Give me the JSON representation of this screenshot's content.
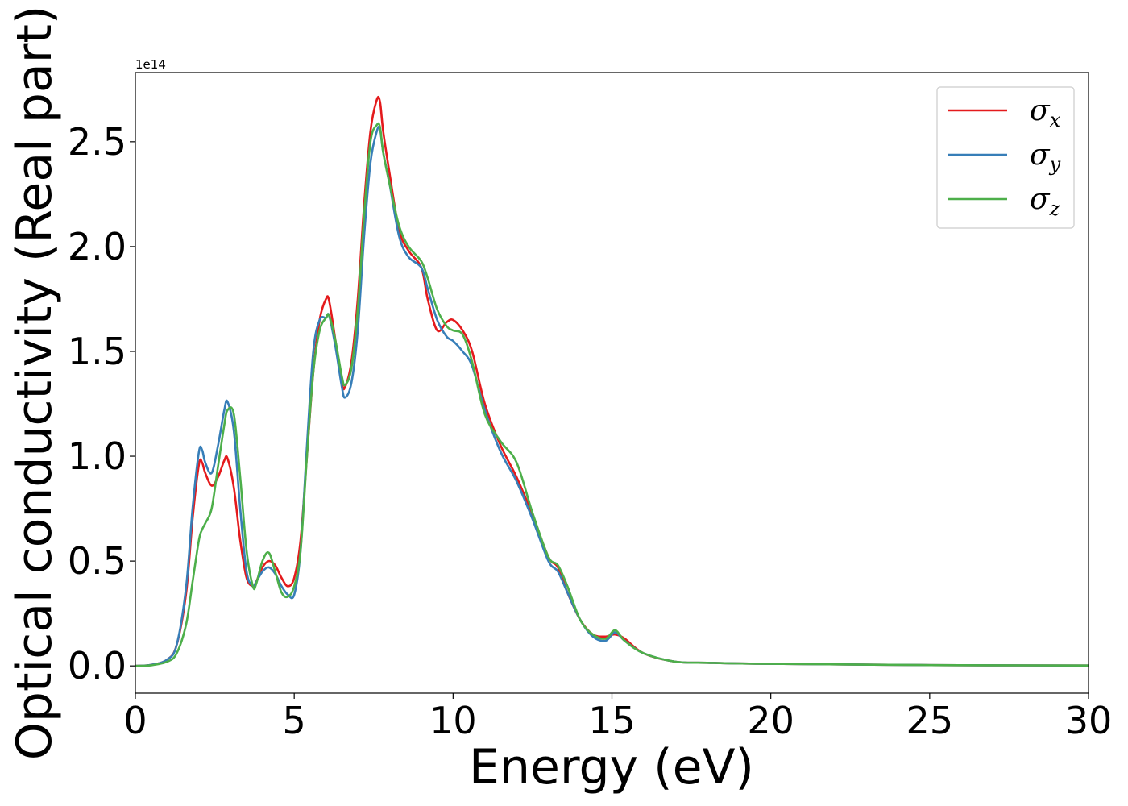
{
  "chart_data": {
    "type": "line",
    "title": "",
    "xlabel": "Energy (eV)",
    "ylabel": "Optical conductivity (Real part)",
    "y_offset_text": "1e14",
    "xlim": [
      0,
      30
    ],
    "ylim": [
      -0.13,
      2.83
    ],
    "y_scale_multiplier": 100000000000000.0,
    "xticks": [
      0,
      5,
      10,
      15,
      20,
      25,
      30
    ],
    "xtick_labels": [
      "0",
      "5",
      "10",
      "15",
      "20",
      "25",
      "30"
    ],
    "yticks": [
      0.0,
      0.5,
      1.0,
      1.5,
      2.0,
      2.5
    ],
    "ytick_labels": [
      "0.0",
      "0.5",
      "1.0",
      "1.5",
      "2.0",
      "2.5"
    ],
    "grid": false,
    "legend_position": "top-right",
    "series": [
      {
        "name": "σx",
        "legend_symbol": "σ",
        "legend_subscript": "x",
        "color": "#e41a1c",
        "x": [
          0,
          0.5,
          1.0,
          1.3,
          1.6,
          1.8,
          2.0,
          2.1,
          2.2,
          2.4,
          2.6,
          2.8,
          2.9,
          3.1,
          3.3,
          3.5,
          3.7,
          3.8,
          4.0,
          4.2,
          4.4,
          4.6,
          4.8,
          5.0,
          5.2,
          5.4,
          5.6,
          5.8,
          6.0,
          6.1,
          6.3,
          6.5,
          6.6,
          6.8,
          7.0,
          7.2,
          7.4,
          7.6,
          7.7,
          7.8,
          8.0,
          8.3,
          8.6,
          9.0,
          9.2,
          9.5,
          9.8,
          10.0,
          10.3,
          10.6,
          11.0,
          11.5,
          12.0,
          12.5,
          13.0,
          13.3,
          13.6,
          14.0,
          14.4,
          14.8,
          15.1,
          15.4,
          16.0,
          17.0,
          18.0,
          20.0,
          25.0,
          30.0
        ],
        "y": [
          0.0,
          0.005,
          0.03,
          0.1,
          0.35,
          0.7,
          0.96,
          0.97,
          0.92,
          0.86,
          0.9,
          0.98,
          0.99,
          0.85,
          0.6,
          0.42,
          0.38,
          0.4,
          0.47,
          0.5,
          0.48,
          0.42,
          0.38,
          0.42,
          0.6,
          1.0,
          1.4,
          1.65,
          1.75,
          1.74,
          1.55,
          1.35,
          1.33,
          1.45,
          1.75,
          2.2,
          2.55,
          2.7,
          2.69,
          2.55,
          2.35,
          2.08,
          1.98,
          1.9,
          1.75,
          1.6,
          1.64,
          1.65,
          1.6,
          1.5,
          1.25,
          1.05,
          0.9,
          0.72,
          0.52,
          0.47,
          0.35,
          0.22,
          0.15,
          0.14,
          0.15,
          0.13,
          0.06,
          0.02,
          0.015,
          0.01,
          0.004,
          0.002
        ]
      },
      {
        "name": "σy",
        "legend_symbol": "σ",
        "legend_subscript": "y",
        "color": "#377eb8",
        "x": [
          0,
          0.5,
          1.0,
          1.3,
          1.6,
          1.8,
          2.0,
          2.1,
          2.2,
          2.4,
          2.6,
          2.8,
          2.9,
          3.1,
          3.3,
          3.5,
          3.7,
          3.8,
          4.0,
          4.2,
          4.4,
          4.6,
          4.8,
          5.0,
          5.2,
          5.4,
          5.6,
          5.8,
          6.0,
          6.1,
          6.3,
          6.5,
          6.6,
          6.8,
          7.0,
          7.2,
          7.4,
          7.6,
          7.7,
          7.8,
          8.0,
          8.3,
          8.6,
          9.0,
          9.2,
          9.5,
          9.8,
          10.0,
          10.3,
          10.6,
          11.0,
          11.5,
          12.0,
          12.5,
          13.0,
          13.3,
          13.6,
          14.0,
          14.4,
          14.8,
          15.1,
          15.4,
          16.0,
          17.0,
          18.0,
          20.0,
          25.0,
          30.0
        ],
        "y": [
          0.0,
          0.005,
          0.03,
          0.1,
          0.38,
          0.75,
          1.02,
          1.03,
          0.97,
          0.92,
          1.05,
          1.22,
          1.26,
          1.12,
          0.75,
          0.45,
          0.38,
          0.4,
          0.45,
          0.47,
          0.44,
          0.38,
          0.34,
          0.34,
          0.55,
          1.05,
          1.5,
          1.65,
          1.66,
          1.67,
          1.52,
          1.33,
          1.28,
          1.35,
          1.6,
          2.05,
          2.4,
          2.55,
          2.56,
          2.45,
          2.3,
          2.05,
          1.95,
          1.9,
          1.8,
          1.65,
          1.57,
          1.55,
          1.5,
          1.43,
          1.22,
          1.02,
          0.88,
          0.7,
          0.5,
          0.45,
          0.35,
          0.22,
          0.14,
          0.12,
          0.16,
          0.12,
          0.06,
          0.02,
          0.015,
          0.01,
          0.004,
          0.002
        ]
      },
      {
        "name": "σz",
        "legend_symbol": "σ",
        "legend_subscript": "z",
        "color": "#4daf4a",
        "x": [
          0,
          0.5,
          1.0,
          1.3,
          1.6,
          1.8,
          2.0,
          2.1,
          2.2,
          2.4,
          2.6,
          2.8,
          2.9,
          3.1,
          3.3,
          3.5,
          3.7,
          3.8,
          4.0,
          4.2,
          4.4,
          4.6,
          4.8,
          5.0,
          5.2,
          5.4,
          5.6,
          5.8,
          6.0,
          6.1,
          6.3,
          6.5,
          6.6,
          6.8,
          7.0,
          7.2,
          7.4,
          7.6,
          7.7,
          7.8,
          8.0,
          8.3,
          8.6,
          9.0,
          9.2,
          9.5,
          9.8,
          10.0,
          10.3,
          10.6,
          11.0,
          11.5,
          12.0,
          12.5,
          13.0,
          13.3,
          13.6,
          14.0,
          14.4,
          14.8,
          15.1,
          15.4,
          16.0,
          17.0,
          18.0,
          20.0,
          25.0,
          30.0
        ],
        "y": [
          0.0,
          0.003,
          0.02,
          0.06,
          0.2,
          0.4,
          0.6,
          0.65,
          0.68,
          0.75,
          0.95,
          1.15,
          1.22,
          1.2,
          0.9,
          0.55,
          0.38,
          0.39,
          0.5,
          0.54,
          0.45,
          0.35,
          0.33,
          0.38,
          0.55,
          1.0,
          1.4,
          1.6,
          1.66,
          1.67,
          1.55,
          1.38,
          1.34,
          1.42,
          1.7,
          2.15,
          2.5,
          2.58,
          2.57,
          2.45,
          2.3,
          2.1,
          2.0,
          1.93,
          1.85,
          1.7,
          1.62,
          1.6,
          1.58,
          1.45,
          1.2,
          1.07,
          0.97,
          0.73,
          0.52,
          0.48,
          0.38,
          0.22,
          0.15,
          0.13,
          0.17,
          0.12,
          0.06,
          0.02,
          0.015,
          0.01,
          0.004,
          0.002
        ]
      }
    ]
  }
}
